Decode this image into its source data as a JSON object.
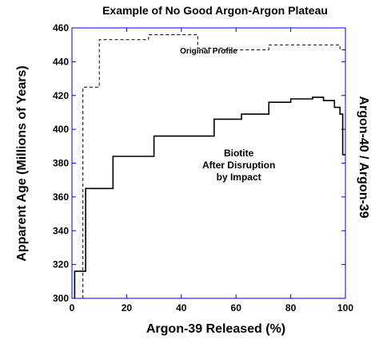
{
  "chart_data": {
    "type": "line",
    "title": "Example of No Good Argon-Argon Plateau",
    "xlabel": "Argon-39 Released (%)",
    "ylabel": "Apparent Age (Millions of Years)",
    "ylabel_right": "Argon-40 / Argon-39",
    "xlim": [
      0,
      100
    ],
    "ylim": [
      300,
      460
    ],
    "xticks": [
      0,
      20,
      40,
      60,
      80,
      100
    ],
    "yticks": [
      300,
      320,
      340,
      360,
      380,
      400,
      420,
      440,
      460
    ],
    "grid": false,
    "annotations": [
      {
        "lines": [
          "Original Profile"
        ],
        "x": 50,
        "y": 445
      },
      {
        "lines": [
          "Biotite",
          "After Disruption",
          "by Impact"
        ],
        "x": 61,
        "y": 384
      }
    ],
    "series": [
      {
        "style": "dashed",
        "x": [
          4,
          4,
          6,
          6,
          10,
          10,
          28,
          28,
          46,
          46,
          55,
          55,
          66,
          66,
          72,
          72,
          98,
          98,
          100
        ],
        "y": [
          300,
          425,
          425,
          425,
          425,
          453,
          453,
          456,
          456,
          448,
          448,
          447,
          447,
          447,
          447,
          450,
          450,
          447,
          447
        ]
      },
      {
        "style": "solid",
        "x": [
          1,
          1,
          5,
          5,
          15,
          15,
          30,
          30,
          52,
          52,
          62,
          62,
          72,
          72,
          80,
          80,
          88,
          88,
          92,
          92,
          96,
          96,
          98,
          98,
          99,
          99,
          100
        ],
        "y": [
          300,
          316,
          316,
          365,
          365,
          384,
          384,
          396,
          396,
          406,
          406,
          409,
          409,
          416,
          416,
          418,
          418,
          419,
          419,
          417,
          417,
          413,
          413,
          409,
          409,
          385,
          385
        ]
      }
    ]
  }
}
